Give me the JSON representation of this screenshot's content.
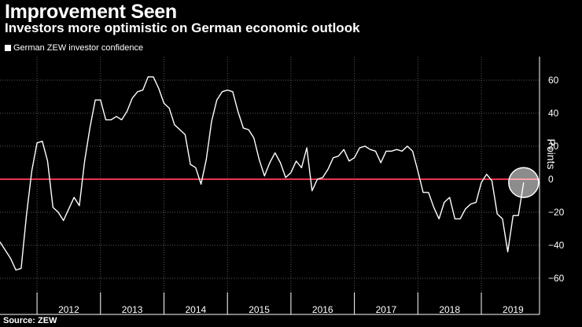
{
  "title": "Improvement Seen",
  "subtitle": "Investors more optimistic on German economic outlook",
  "source": "Source: ZEW",
  "chart_data": {
    "type": "line",
    "title": "Improvement Seen",
    "subtitle": "Investors more optimistic on German economic outlook",
    "ylabel": "Points",
    "xlabel": "",
    "ylim": [
      -70,
      72
    ],
    "xlim": [
      "2011-06",
      "2019-12"
    ],
    "yticks": [
      60,
      40,
      20,
      0,
      -20,
      -40,
      -60
    ],
    "ytick_labels": [
      "60",
      "40",
      "20",
      "0",
      "−20",
      "−40",
      "−60"
    ],
    "xtick_labels": [
      "2012",
      "2013",
      "2014",
      "2015",
      "2016",
      "2017",
      "2018",
      "2019"
    ],
    "grid": true,
    "legend": "top-left",
    "reference_line": {
      "y": 0,
      "color": "#e8364f"
    },
    "highlight": {
      "x": "2019-09",
      "y": -2,
      "shape": "circle"
    },
    "series": [
      {
        "name": "German ZEW investor confidence",
        "color": "#ffffff",
        "x": [
          "2011-06",
          "2011-07",
          "2011-08",
          "2011-09",
          "2011-10",
          "2011-11",
          "2011-12",
          "2012-01",
          "2012-02",
          "2012-03",
          "2012-04",
          "2012-05",
          "2012-06",
          "2012-07",
          "2012-08",
          "2012-09",
          "2012-10",
          "2012-11",
          "2012-12",
          "2013-01",
          "2013-02",
          "2013-03",
          "2013-04",
          "2013-05",
          "2013-06",
          "2013-07",
          "2013-08",
          "2013-09",
          "2013-10",
          "2013-11",
          "2013-12",
          "2014-01",
          "2014-02",
          "2014-03",
          "2014-04",
          "2014-05",
          "2014-06",
          "2014-07",
          "2014-08",
          "2014-09",
          "2014-10",
          "2014-11",
          "2014-12",
          "2015-01",
          "2015-02",
          "2015-03",
          "2015-04",
          "2015-05",
          "2015-06",
          "2015-07",
          "2015-08",
          "2015-09",
          "2015-10",
          "2015-11",
          "2015-12",
          "2016-01",
          "2016-02",
          "2016-03",
          "2016-04",
          "2016-05",
          "2016-06",
          "2016-07",
          "2016-08",
          "2016-09",
          "2016-10",
          "2016-11",
          "2016-12",
          "2017-01",
          "2017-02",
          "2017-03",
          "2017-04",
          "2017-05",
          "2017-06",
          "2017-07",
          "2017-08",
          "2017-09",
          "2017-10",
          "2017-11",
          "2017-12",
          "2018-01",
          "2018-02",
          "2018-03",
          "2018-04",
          "2018-05",
          "2018-06",
          "2018-07",
          "2018-08",
          "2018-09",
          "2018-10",
          "2018-11",
          "2018-12",
          "2019-01",
          "2019-02",
          "2019-03",
          "2019-04",
          "2019-05",
          "2019-06",
          "2019-07",
          "2019-08",
          "2019-09"
        ],
        "values": [
          -38,
          -43,
          -48,
          -55,
          -54,
          -22,
          5,
          22,
          23,
          11,
          -17,
          -20,
          -25,
          -18,
          -11,
          -16,
          11,
          31,
          48,
          48,
          36,
          36,
          38,
          36,
          41,
          49,
          53,
          54,
          62,
          62,
          55,
          46,
          43,
          33,
          30,
          27,
          9,
          7,
          -3,
          12,
          35,
          48,
          53,
          54,
          53,
          41,
          31,
          30,
          25,
          12,
          2,
          10,
          16,
          10,
          1,
          4,
          11,
          7,
          19,
          -7,
          0,
          1,
          6,
          13,
          14,
          18,
          11,
          13,
          19,
          20,
          18,
          17,
          10,
          17,
          17,
          18,
          17,
          20,
          17,
          5,
          -8,
          -8,
          -17,
          -24,
          -14,
          -11,
          -24,
          -24,
          -18,
          -15,
          -14,
          -2,
          3,
          -1,
          -21,
          -24,
          -44,
          -22,
          -22,
          -2
        ]
      }
    ]
  }
}
